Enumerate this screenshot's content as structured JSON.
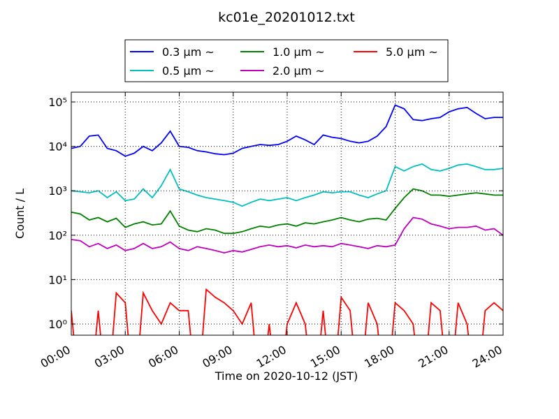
{
  "chart_data": {
    "type": "line",
    "title": "kc01e_20201012.txt",
    "x_label": "Time on 2020-10-12 (JST)",
    "y_label": "Count / L",
    "log_y": true,
    "grid": true,
    "legend": "top",
    "x": [
      0,
      0.5,
      1,
      1.5,
      2,
      2.5,
      3,
      3.5,
      4,
      4.5,
      5,
      5.5,
      6,
      6.5,
      7,
      7.5,
      8,
      8.5,
      9,
      9.5,
      10,
      10.5,
      11,
      11.5,
      12,
      12.5,
      13,
      13.5,
      14,
      14.5,
      15,
      15.5,
      16,
      16.5,
      17,
      17.5,
      18,
      18.5,
      19,
      19.5,
      20,
      20.5,
      21,
      21.5,
      22,
      22.5,
      23,
      23.5,
      24
    ],
    "xlim": [
      0,
      24
    ],
    "xticks": [
      {
        "value": 0,
        "label": "00:00"
      },
      {
        "value": 3,
        "label": "03:00"
      },
      {
        "value": 6,
        "label": "06:00"
      },
      {
        "value": 9,
        "label": "09:00"
      },
      {
        "value": 12,
        "label": "12:00"
      },
      {
        "value": 15,
        "label": "15:00"
      },
      {
        "value": 18,
        "label": "18:00"
      },
      {
        "value": 21,
        "label": "21:00"
      },
      {
        "value": 24,
        "label": "24:00"
      }
    ],
    "ylim": [
      0.56,
      166000
    ],
    "yticks": [
      {
        "value": 1,
        "label": "10⁰"
      },
      {
        "value": 10,
        "label": "10¹"
      },
      {
        "value": 100,
        "label": "10²"
      },
      {
        "value": 1000,
        "label": "10³"
      },
      {
        "value": 10000,
        "label": "10⁴"
      },
      {
        "value": 100000,
        "label": "10⁵"
      }
    ],
    "series": [
      {
        "name": "0.3 μm ~",
        "color": "#0000ff",
        "values": [
          9000,
          10000,
          17000,
          18000,
          9000,
          8000,
          6000,
          7000,
          10000,
          8000,
          12000,
          22000,
          10000,
          9500,
          8000,
          7500,
          6800,
          6500,
          7000,
          9000,
          10000,
          11000,
          10500,
          11000,
          13000,
          17000,
          14000,
          11000,
          18000,
          16000,
          15000,
          13000,
          12000,
          13000,
          17000,
          28000,
          85000,
          70000,
          40000,
          38000,
          42000,
          45000,
          60000,
          70000,
          75000,
          55000,
          42000,
          45000,
          45000
        ]
      },
      {
        "name": "0.5 μm ~",
        "color": "#00bfbf",
        "values": [
          1000,
          950,
          900,
          1000,
          700,
          950,
          600,
          650,
          1100,
          700,
          1300,
          3000,
          1100,
          950,
          800,
          700,
          650,
          600,
          550,
          450,
          550,
          650,
          600,
          650,
          700,
          600,
          700,
          800,
          950,
          900,
          950,
          950,
          800,
          700,
          850,
          1000,
          3500,
          2800,
          3500,
          4000,
          3000,
          2800,
          3200,
          3800,
          4000,
          3500,
          3000,
          3000,
          3200
        ]
      },
      {
        "name": "1.0 μm ~",
        "color": "#008000",
        "values": [
          330,
          300,
          220,
          250,
          200,
          240,
          150,
          180,
          200,
          170,
          180,
          350,
          160,
          130,
          120,
          140,
          130,
          110,
          110,
          120,
          140,
          160,
          150,
          170,
          180,
          160,
          190,
          180,
          200,
          220,
          250,
          220,
          200,
          230,
          240,
          220,
          400,
          700,
          1100,
          1000,
          800,
          800,
          750,
          800,
          850,
          900,
          850,
          800,
          800
        ]
      },
      {
        "name": "2.0 μm ~",
        "color": "#bf00bf",
        "values": [
          80,
          75,
          55,
          65,
          50,
          60,
          45,
          50,
          65,
          50,
          55,
          70,
          50,
          45,
          55,
          50,
          45,
          40,
          45,
          42,
          48,
          55,
          60,
          55,
          58,
          52,
          60,
          55,
          58,
          55,
          65,
          60,
          55,
          50,
          58,
          55,
          60,
          140,
          250,
          230,
          180,
          160,
          140,
          150,
          150,
          160,
          130,
          140,
          100
        ]
      },
      {
        "name": "5.0 μm ~",
        "color": "#ff0000",
        "values": [
          2,
          0,
          0,
          2,
          0,
          5,
          3,
          0,
          5,
          2,
          1,
          3,
          2,
          2,
          0,
          6,
          4,
          3,
          2,
          1,
          3,
          0,
          1,
          0,
          1,
          3,
          1,
          0,
          2,
          0,
          4,
          2,
          0,
          3,
          1,
          0,
          3,
          2,
          1,
          0,
          3,
          2,
          0,
          3,
          1,
          0,
          2,
          3,
          2
        ]
      }
    ]
  }
}
